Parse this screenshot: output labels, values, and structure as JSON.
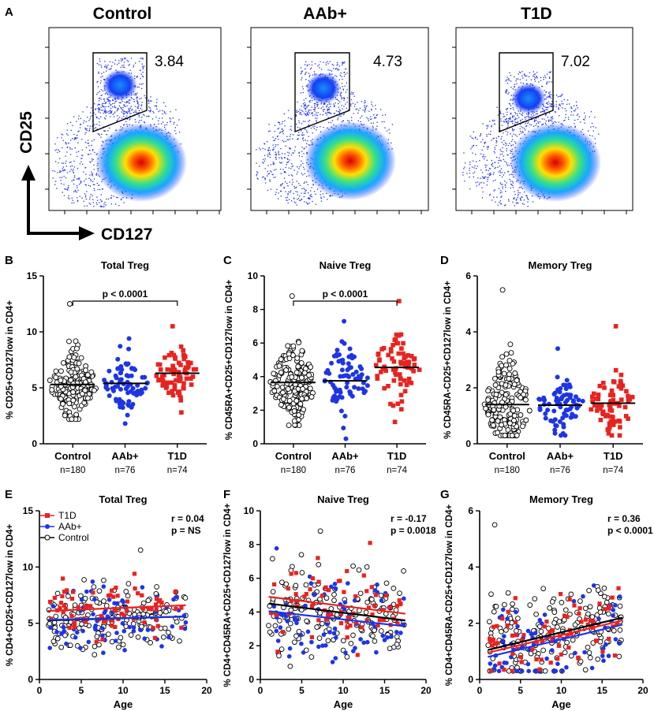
{
  "panel_labels": {
    "A": "A",
    "B": "B",
    "C": "C",
    "D": "D",
    "E": "E",
    "F": "F",
    "G": "G"
  },
  "flow": {
    "panels": [
      {
        "title": "Control",
        "gate_value": "3.84"
      },
      {
        "title": "AAb+",
        "gate_value": "4.73"
      },
      {
        "title": "T1D",
        "gate_value": "7.02"
      }
    ],
    "y_axis": "CD25",
    "x_axis": "CD127"
  },
  "colors": {
    "t1d": "#e8231f",
    "aab": "#1d35e6",
    "control": "#000000",
    "axis": "#000000"
  },
  "chart_data": [
    {
      "id": "B",
      "type": "scatter",
      "title": "Total Treg",
      "ylabel": "% CD25+CD127low in CD4+",
      "ylim": [
        0,
        15
      ],
      "yticks": [
        0,
        5,
        10,
        15
      ],
      "categories": [
        "Control",
        "AAb+",
        "T1D"
      ],
      "counts": [
        "n=180",
        "n=76",
        "n=74"
      ],
      "medians": [
        5.3,
        5.4,
        6.3
      ],
      "spread": [
        [
          2.2,
          12.5
        ],
        [
          1.8,
          9.4
        ],
        [
          2.8,
          10.5
        ]
      ],
      "comparison": "p < 0.0001",
      "comparison_groups": [
        "Control",
        "T1D"
      ]
    },
    {
      "id": "C",
      "type": "scatter",
      "title": "Naive Treg",
      "ylabel": "% CD45RA+CD25+CD127low in CD4+",
      "ylim": [
        0,
        10
      ],
      "yticks": [
        0,
        2,
        4,
        6,
        8,
        10
      ],
      "categories": [
        "Control",
        "AAb+",
        "T1D"
      ],
      "counts": [
        "n=180",
        "n=76",
        "n=74"
      ],
      "medians": [
        3.65,
        3.75,
        4.55
      ],
      "spread": [
        [
          1.1,
          8.8
        ],
        [
          0.3,
          7.3
        ],
        [
          1.3,
          8.5
        ]
      ],
      "comparison": "p < 0.0001",
      "comparison_groups": [
        "Control",
        "T1D"
      ]
    },
    {
      "id": "D",
      "type": "scatter",
      "title": "Memory Treg",
      "ylabel": "% CD45RA-CD25+CD127low in CD4+",
      "ylim": [
        0,
        6
      ],
      "yticks": [
        0,
        2,
        4,
        6
      ],
      "categories": [
        "Control",
        "AAb+",
        "T1D"
      ],
      "counts": [
        "n=180",
        "n=76",
        "n=74"
      ],
      "medians": [
        1.4,
        1.38,
        1.45
      ],
      "spread": [
        [
          0.3,
          5.5
        ],
        [
          0.3,
          3.4
        ],
        [
          0.3,
          4.2
        ]
      ]
    },
    {
      "id": "E",
      "type": "scatter",
      "title": "Total Treg",
      "ylabel": "% CD4+CD25+CD127low in CD4+",
      "xlabel": "Age",
      "xlim": [
        0,
        20
      ],
      "xticks": [
        0,
        5,
        10,
        15,
        20
      ],
      "ylim": [
        0,
        15
      ],
      "yticks": [
        0,
        5,
        10,
        15
      ],
      "legend": [
        "T1D",
        "AAb+",
        "Control"
      ],
      "r": "r = 0.04",
      "p": "p = NS",
      "fits": {
        "T1D": [
          [
            1,
            6.1
          ],
          [
            17.5,
            6.6
          ]
        ],
        "AAb+": [
          [
            1,
            5.3
          ],
          [
            17.5,
            5.6
          ]
        ],
        "Control": [
          [
            1,
            5.25
          ],
          [
            17.5,
            5.6
          ]
        ]
      },
      "yrange": [
        2.2,
        11.5
      ]
    },
    {
      "id": "F",
      "type": "scatter",
      "title": "Naive Treg",
      "ylabel": "% CD4+CD45RA+CD25+CD127low in CD4+",
      "xlabel": "Age",
      "xlim": [
        0,
        20
      ],
      "xticks": [
        0,
        5,
        10,
        15,
        20
      ],
      "ylim": [
        0,
        10
      ],
      "yticks": [
        0,
        2,
        4,
        6,
        8,
        10
      ],
      "r": "r = -0.17",
      "p": "p = 0.0018",
      "fits": {
        "T1D": [
          [
            1,
            4.9
          ],
          [
            17.5,
            3.9
          ]
        ],
        "AAb+": [
          [
            1,
            4.05
          ],
          [
            17.5,
            3.15
          ]
        ],
        "Control": [
          [
            1,
            4.5
          ],
          [
            17.5,
            3.5
          ]
        ]
      },
      "yrange": [
        0.4,
        8.8
      ]
    },
    {
      "id": "G",
      "type": "scatter",
      "title": "Memory Treg",
      "ylabel": "% CD4+CD45RA-CD25+CD127low in CD4+",
      "xlabel": "Age",
      "xlim": [
        0,
        20
      ],
      "xticks": [
        0,
        5,
        10,
        15,
        20
      ],
      "ylim": [
        0,
        6
      ],
      "yticks": [
        0,
        2,
        4,
        6
      ],
      "r": "r = 0.36",
      "p": "p < 0.0001",
      "fits": {
        "T1D": [
          [
            1,
            0.95
          ],
          [
            17.5,
            2.1
          ]
        ],
        "AAb+": [
          [
            1,
            0.8
          ],
          [
            17.5,
            1.95
          ]
        ],
        "Control": [
          [
            1,
            1.05
          ],
          [
            17.5,
            2.2
          ]
        ]
      },
      "yrange": [
        0.3,
        5.5
      ]
    }
  ]
}
